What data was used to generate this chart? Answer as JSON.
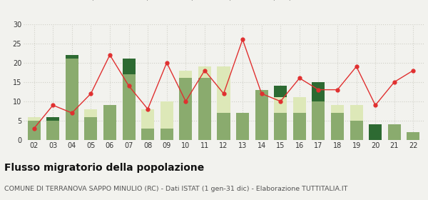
{
  "years": [
    "02",
    "03",
    "04",
    "05",
    "06",
    "07",
    "08",
    "09",
    "10",
    "11",
    "12",
    "13",
    "14",
    "15",
    "16",
    "17",
    "18",
    "19",
    "20",
    "21",
    "22"
  ],
  "iscritti_comuni": [
    5,
    5,
    21,
    6,
    9,
    17,
    3,
    3,
    16,
    16,
    7,
    7,
    13,
    7,
    7,
    10,
    7,
    5,
    0,
    4,
    2
  ],
  "iscritti_estero": [
    1,
    0,
    0,
    2,
    0,
    0,
    5,
    7,
    2,
    3,
    12,
    0,
    0,
    4,
    4,
    0,
    2,
    4,
    0,
    0,
    0
  ],
  "iscritti_altri": [
    0,
    1,
    1,
    0,
    0,
    4,
    0,
    0,
    0,
    0,
    0,
    0,
    0,
    3,
    0,
    5,
    0,
    0,
    4,
    0,
    0
  ],
  "cancellati": [
    3,
    9,
    7,
    12,
    22,
    14,
    8,
    20,
    10,
    18,
    12,
    26,
    12,
    10,
    16,
    13,
    13,
    19,
    9,
    15,
    18
  ],
  "color_comuni": "#8aab6e",
  "color_estero": "#dde8b8",
  "color_altri": "#2d6a32",
  "color_cancellati": "#e03030",
  "bg_color": "#f2f2ee",
  "grid_color": "#d0d0c8",
  "ylim": [
    0,
    30
  ],
  "yticks": [
    0,
    5,
    10,
    15,
    20,
    25,
    30
  ],
  "title": "Flusso migratorio della popolazione",
  "subtitle": "COMUNE DI TERRANOVA SAPPO MINULIO (RC) - Dati ISTAT (1 gen-31 dic) - Elaborazione TUTTITALIA.IT",
  "title_fontsize": 10,
  "subtitle_fontsize": 6.8,
  "legend_fontsize": 7,
  "tick_fontsize": 7
}
